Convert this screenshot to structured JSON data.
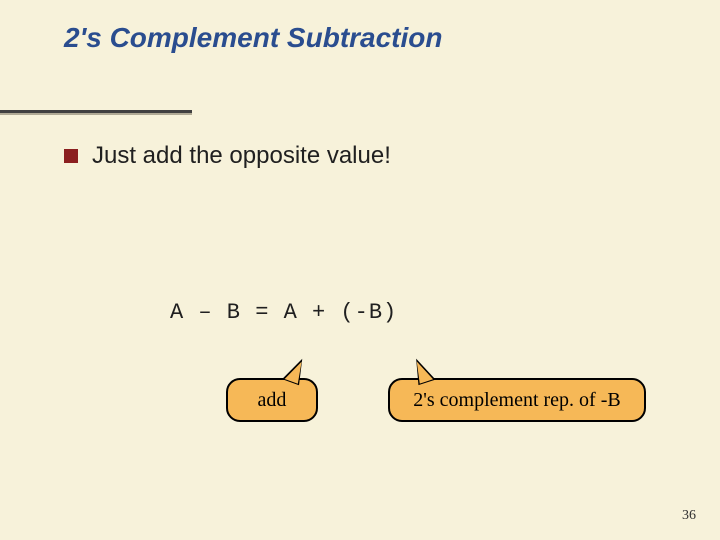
{
  "title": "2's Complement Subtraction",
  "bullet": "Just add the opposite value!",
  "equation": "A – B = A + (-B)",
  "callouts": {
    "add": "add",
    "twoscomp": "2's complement rep. of -B"
  },
  "page_number": "36",
  "colors": {
    "background": "#f7f2da",
    "title": "#2a4d8f",
    "bullet_square": "#8b1f1f",
    "callout_fill": "#f6b857",
    "callout_border": "#000000",
    "divider": "#404040"
  }
}
